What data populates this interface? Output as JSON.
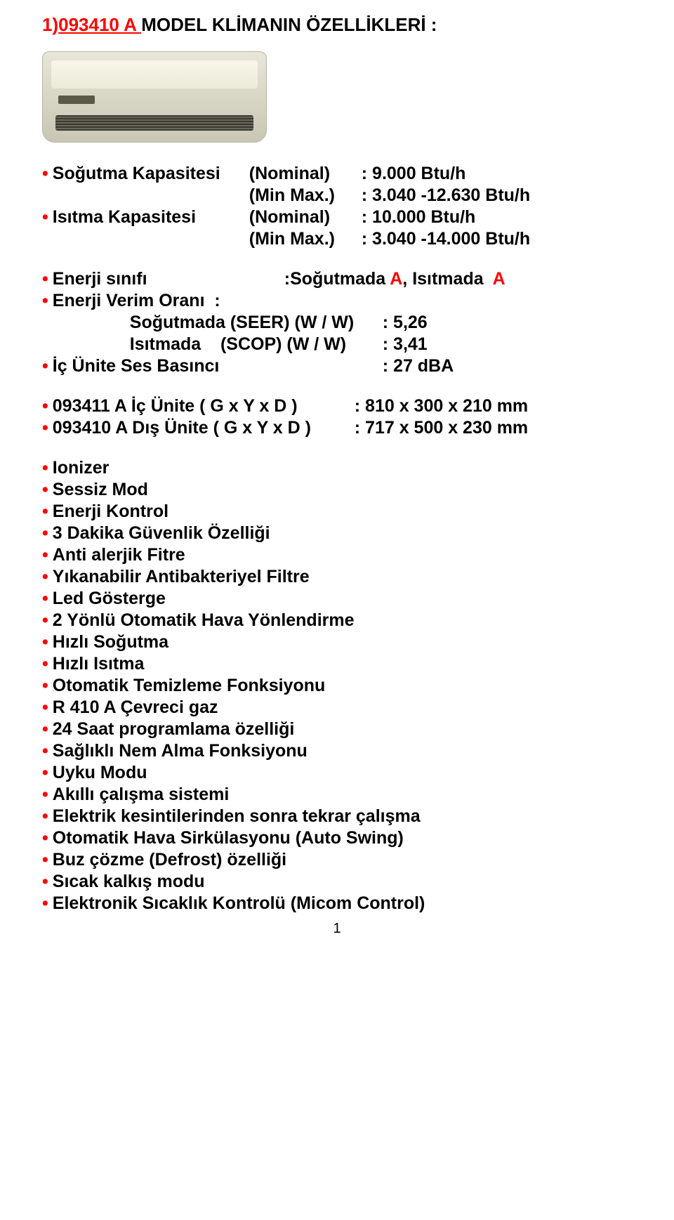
{
  "title": {
    "prefix": "1)",
    "model": "093410 A ",
    "rest": " MODEL KLİMANIN ÖZELLİKLERİ :"
  },
  "capacity": {
    "cooling_label": "Soğutma Kapasitesi",
    "cooling_nom_paren": "(Nominal)",
    "cooling_nom_val": ": 9.000 Btu/h",
    "cooling_range_paren": "(Min Max.)",
    "cooling_range_val": ": 3.040 -12.630 Btu/h",
    "heating_label": "Isıtma Kapasitesi",
    "heating_nom_paren": "(Nominal)",
    "heating_nom_val": ": 10.000 Btu/h",
    "heating_range_paren": "(Min Max.)",
    "heating_range_val": ": 3.040 -14.000 Btu/h"
  },
  "energy": {
    "class_label": "Enerji sınıfı",
    "class_prefix": ":Soğutmada ",
    "class_cool": "A",
    "class_mid": ", Isıtmada  ",
    "class_heat": "A",
    "ratio_label": "Enerji Verim Oranı  :",
    "seer_label": "Soğutmada (SEER) (W / W)",
    "seer_val": ": 5,26",
    "scop_label": "Isıtmada    (SCOP) (W / W)",
    "scop_val": ": 3,41",
    "sound_label": "İç Ünite Ses Basıncı",
    "sound_val": ": 27 dBA"
  },
  "dims": {
    "indoor_label": "093411 A İç Ünite ( G x Y x D )",
    "indoor_val": ": 810 x 300 x 210 mm",
    "outdoor_label": "093410 A Dış Ünite ( G x Y x D )",
    "outdoor_val": ": 717 x 500 x 230 mm"
  },
  "features": [
    "Ionizer",
    "Sessiz Mod",
    "Enerji Kontrol",
    "3 Dakika Güvenlik Özelliği",
    "Anti alerjik Fitre",
    "Yıkanabilir Antibakteriyel Filtre",
    "Led Gösterge",
    "2 Yönlü Otomatik Hava Yönlendirme",
    "Hızlı Soğutma",
    "Hızlı Isıtma",
    "Otomatik Temizleme Fonksiyonu",
    "R 410 A Çevreci gaz",
    "24 Saat programlama özelliği",
    "Sağlıklı Nem Alma Fonksiyonu",
    "Uyku Modu",
    "Akıllı çalışma sistemi",
    "Elektrik kesintilerinden sonra tekrar çalışma",
    "Otomatik Hava Sirkülasyonu (Auto Swing)",
    "Buz çözme (Defrost) özelliği",
    "Sıcak kalkış modu",
    "Elektronik Sıcaklık Kontrolü (Micom Control)"
  ],
  "page_number": "1",
  "layout": {
    "col_label_w": 280,
    "col_paren_w": 160,
    "indent_sub": 110
  }
}
